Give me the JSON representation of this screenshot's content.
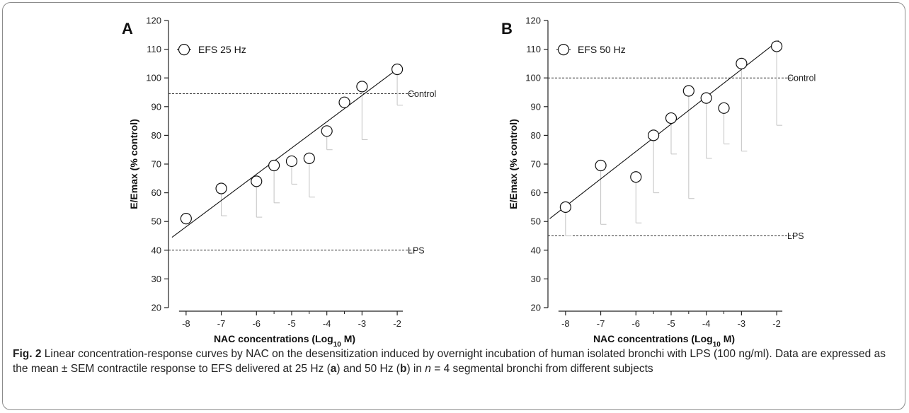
{
  "chart_data": [
    {
      "type": "scatter",
      "panel_label": "A",
      "legend": "EFS 25 Hz",
      "legend_position": "top-left",
      "xlabel_main": "NAC concentrations (Log",
      "xlabel_sub": "10",
      "xlabel_tail": " M)",
      "ylabel": "E/Emax (% control)",
      "xlim": [
        -8.5,
        -1.7
      ],
      "ylim": [
        20,
        120
      ],
      "xticks": [
        -8,
        -7,
        -6,
        -5,
        -4,
        -3,
        -2
      ],
      "minor_xticks": [
        -5.5,
        -4.5,
        -3.5
      ],
      "yticks": [
        20,
        30,
        40,
        50,
        60,
        70,
        80,
        90,
        100,
        110,
        120
      ],
      "grid": false,
      "reference_lines": [
        {
          "label": "Control",
          "y": 94.5
        },
        {
          "label": "LPS",
          "y": 40
        }
      ],
      "points": [
        {
          "x": -8,
          "y": 51,
          "err": 0
        },
        {
          "x": -7,
          "y": 61.5,
          "err": 9.5
        },
        {
          "x": -6,
          "y": 64,
          "err": 12.5
        },
        {
          "x": -5.5,
          "y": 69.5,
          "err": 13
        },
        {
          "x": -5,
          "y": 71,
          "err": 8
        },
        {
          "x": -4.5,
          "y": 72,
          "err": 13.5
        },
        {
          "x": -4,
          "y": 81.5,
          "err": 6.5
        },
        {
          "x": -3.5,
          "y": 91.5,
          "err": 0
        },
        {
          "x": -3,
          "y": 97,
          "err": 18.5
        },
        {
          "x": -2,
          "y": 103,
          "err": 12.5
        }
      ],
      "fit_line": {
        "x": [
          -8.4,
          -1.95
        ],
        "y": [
          44.5,
          103.5
        ]
      }
    },
    {
      "type": "scatter",
      "panel_label": "B",
      "legend": "EFS 50 Hz",
      "legend_position": "top-left",
      "xlabel_main": "NAC concentrations (Log",
      "xlabel_sub": "10",
      "xlabel_tail": " M)",
      "ylabel": "E/Emax (% control)",
      "xlim": [
        -8.5,
        -1.7
      ],
      "ylim": [
        20,
        120
      ],
      "xticks": [
        -8,
        -7,
        -6,
        -5,
        -4,
        -3,
        -2
      ],
      "minor_xticks": [
        -5.5,
        -4.5,
        -3.5
      ],
      "yticks": [
        20,
        30,
        40,
        50,
        60,
        70,
        80,
        90,
        100,
        110,
        120
      ],
      "grid": false,
      "reference_lines": [
        {
          "label": "Control",
          "y": 100
        },
        {
          "label": "LPS",
          "y": 45
        }
      ],
      "points": [
        {
          "x": -8,
          "y": 55,
          "err": 10
        },
        {
          "x": -7,
          "y": 69.5,
          "err": 20.5
        },
        {
          "x": -6,
          "y": 65.5,
          "err": 16
        },
        {
          "x": -5.5,
          "y": 80,
          "err": 20
        },
        {
          "x": -5,
          "y": 86,
          "err": 12.5
        },
        {
          "x": -4.5,
          "y": 95.5,
          "err": 37.5
        },
        {
          "x": -4,
          "y": 93,
          "err": 21
        },
        {
          "x": -3.5,
          "y": 89.5,
          "err": 12.5
        },
        {
          "x": -3,
          "y": 105,
          "err": 30.5
        },
        {
          "x": -2,
          "y": 111,
          "err": 27.5
        }
      ],
      "fit_line": {
        "x": [
          -8.45,
          -1.95
        ],
        "y": [
          51,
          113
        ]
      }
    }
  ],
  "caption": {
    "fig_label": "Fig. 2",
    "part1": " Linear concentration-response curves by NAC on the desensitization induced by overnight incubation of human isolated bronchi with LPS (100 ng/ml). Data are expressed as the mean ± SEM contractile response to EFS delivered at 25 Hz (",
    "a": "a",
    "part2": ") and 50 Hz (",
    "b": "b",
    "part3": ") in ",
    "n": "n",
    "part4": " = 4 segmental bronchi from different subjects"
  }
}
